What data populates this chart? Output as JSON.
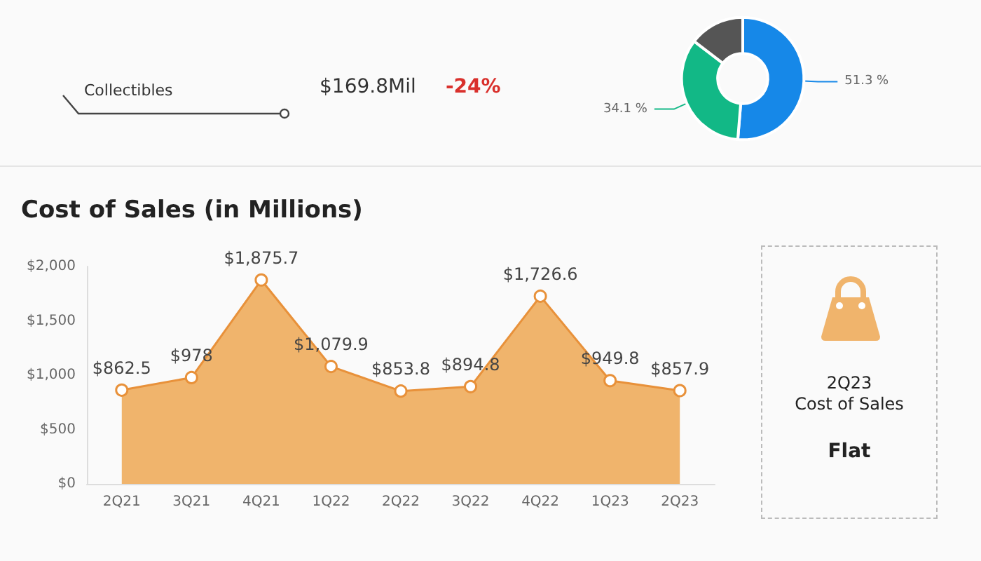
{
  "chart_data": [
    {
      "type": "other",
      "annotations": [
        "Collectibles",
        "$169.8Mil",
        "-24%"
      ]
    },
    {
      "type": "donut",
      "categories": [
        null,
        null,
        null
      ],
      "values": [
        51.3,
        34.1,
        14.6
      ],
      "colors": [
        "#1688e8",
        "#12b886",
        "#555555"
      ],
      "value_labels": [
        "51.3 %",
        "34.1 %",
        null
      ]
    },
    {
      "type": "area",
      "title": "Cost of Sales (in Millions)",
      "categories": [
        "2Q21",
        "3Q21",
        "4Q21",
        "1Q22",
        "2Q22",
        "3Q22",
        "4Q22",
        "1Q23",
        "2Q23"
      ],
      "values": [
        862.5,
        978,
        1875.7,
        1079.9,
        853.8,
        894.8,
        1726.6,
        949.8,
        857.9
      ],
      "value_labels": [
        "$862.5",
        "$978",
        "$1,875.7",
        "$1,079.9",
        "$853.8",
        "$894.8",
        "$1,726.6",
        "$949.8",
        "$857.9"
      ],
      "color": "#f0b46c",
      "ylim": [
        0,
        2000
      ],
      "yticks": [
        {
          "value": 0,
          "label": "$0"
        },
        {
          "value": 500,
          "label": "$500"
        },
        {
          "value": 1000,
          "label": "$1,000"
        },
        {
          "value": 1500,
          "label": "$1,500"
        },
        {
          "value": 2000,
          "label": "$2,000"
        }
      ],
      "grid": false,
      "marker": "circle"
    },
    {
      "type": "other",
      "annotations": [
        "2Q23",
        "Cost of Sales",
        "Flat"
      ]
    }
  ]
}
